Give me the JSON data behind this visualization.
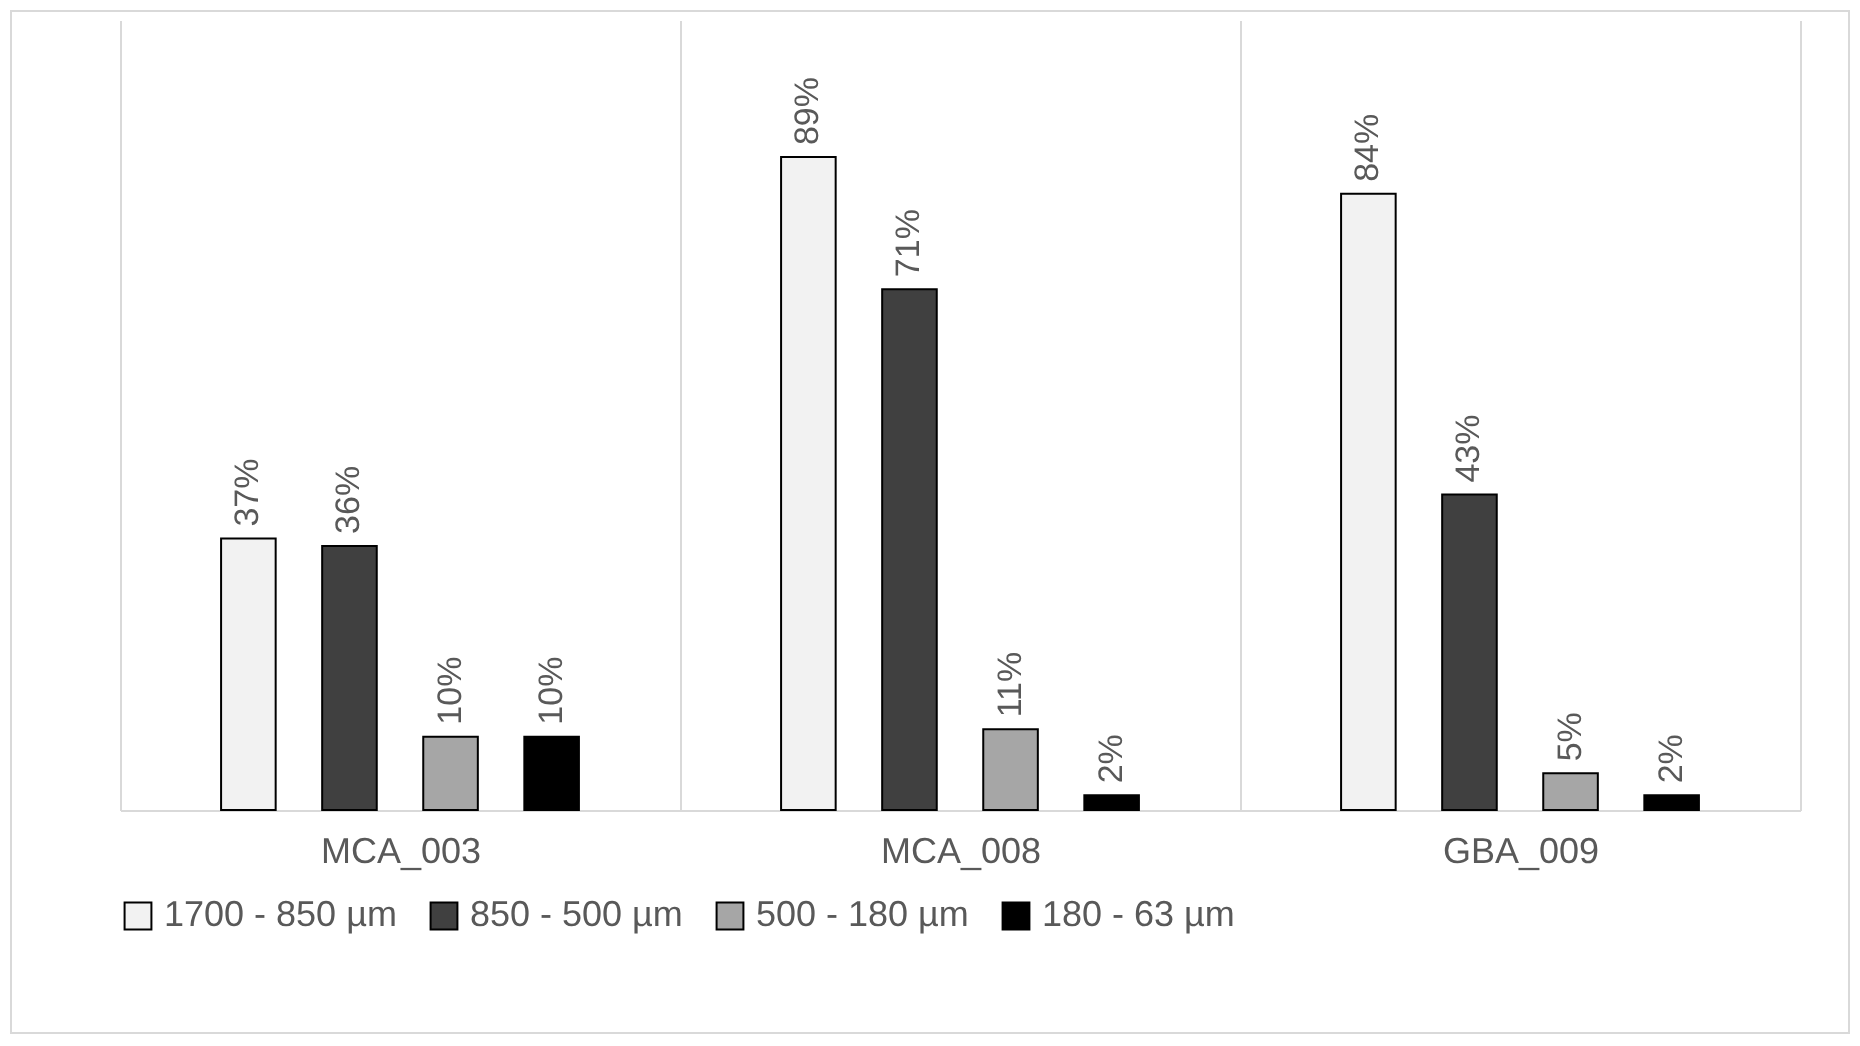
{
  "chart_data": {
    "type": "bar",
    "categories": [
      "MCA_003",
      "MCA_008",
      "GBA_009"
    ],
    "series": [
      {
        "name": "1700 - 850 µm",
        "color": "#f2f2f2",
        "values": [
          37,
          89,
          84
        ],
        "value_labels": [
          "37%",
          "89%",
          "84%"
        ]
      },
      {
        "name": "850 - 500 µm",
        "color": "#404040",
        "values": [
          36,
          71,
          43
        ],
        "value_labels": [
          "36%",
          "71%",
          "43%"
        ]
      },
      {
        "name": "500 - 180 µm",
        "color": "#a6a6a6",
        "values": [
          10,
          11,
          5
        ],
        "value_labels": [
          "10%",
          "11%",
          "5%"
        ]
      },
      {
        "name": "180 - 63 µm",
        "color": "#000000",
        "values": [
          10,
          2,
          2
        ],
        "value_labels": [
          "10%",
          "2%",
          "2%"
        ]
      }
    ],
    "grid": "x",
    "legend": "bottom",
    "tick_labels": "x"
  }
}
